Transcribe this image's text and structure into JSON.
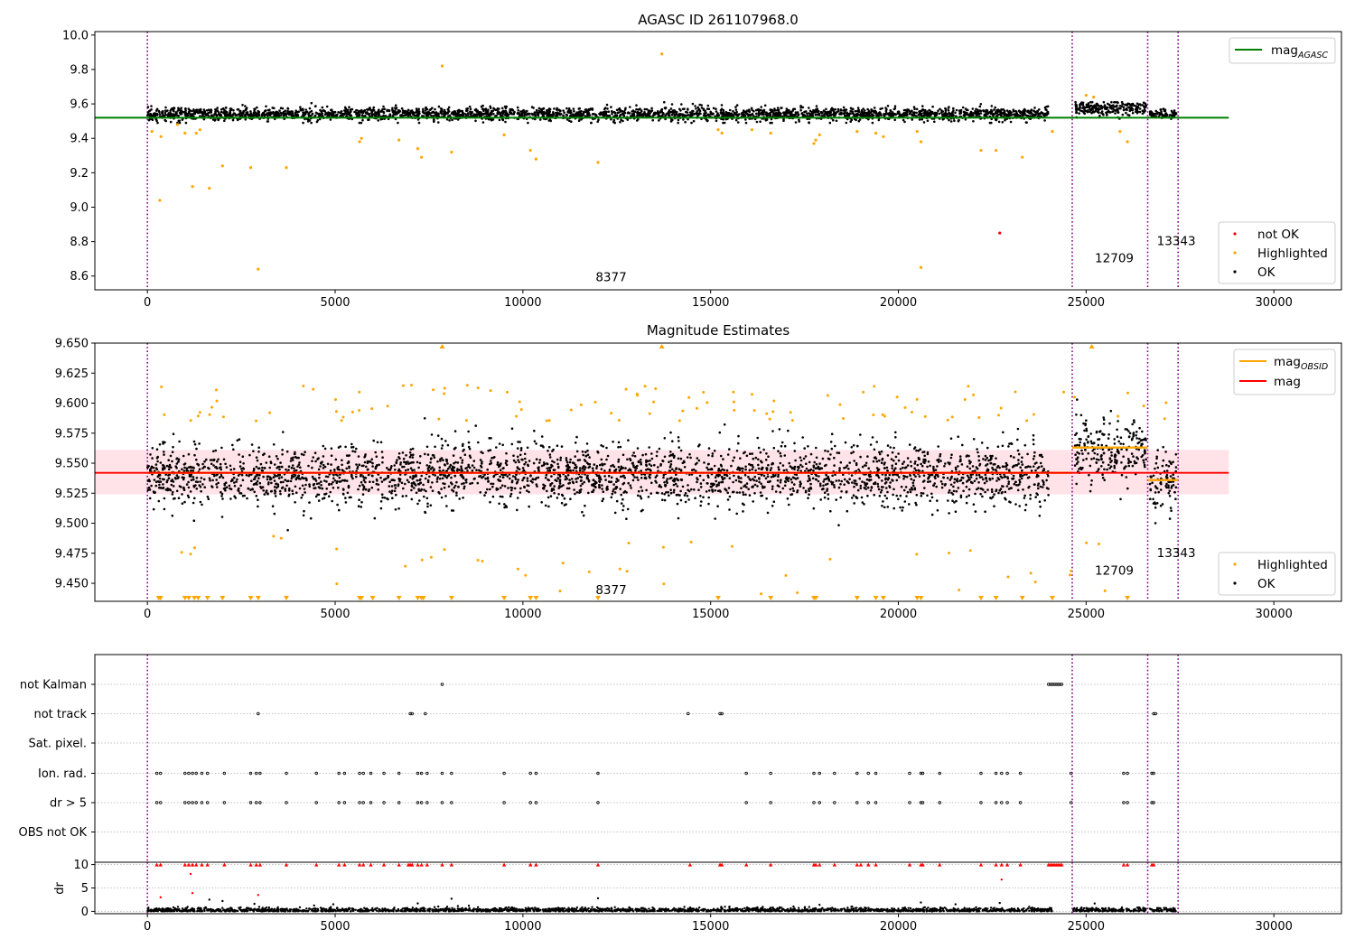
{
  "colors": {
    "ok": "#000000",
    "highlighted": "#ffa500",
    "not_ok": "#ff0000",
    "mag_agasc": "#008000",
    "mag_obsid": "#ffa500",
    "mag": "#ff0000",
    "obs_boundary": "#800080",
    "band": "#ffc0cb",
    "grid": "#b0b0b0"
  },
  "chart_data": [
    {
      "type": "scatter",
      "title": "AGASC ID 261107968.0",
      "xlim": [
        -1400,
        31800
      ],
      "ylim": [
        8.52,
        10.02
      ],
      "x_ticks": [
        "0",
        "5000",
        "10000",
        "15000",
        "20000",
        "25000",
        "30000"
      ],
      "y_ticks": [
        "8.6",
        "8.8",
        "9.0",
        "9.2",
        "9.4",
        "9.6",
        "9.8",
        "10.0"
      ],
      "lines": [
        {
          "name_main": "mag",
          "name_sub": "AGASC",
          "y": 9.52,
          "x_range": [
            -1400,
            28800
          ]
        }
      ],
      "legend_lines_position": "upper right",
      "legend_points": [
        "not OK",
        "Highlighted",
        "OK"
      ],
      "legend_points_position": "lower right",
      "obs_boundaries": [
        0,
        24630,
        26640,
        27450
      ],
      "obs_labels": [
        {
          "text": "8377",
          "x": 12350,
          "y": 8.57
        },
        {
          "text": "12709",
          "x": 25750,
          "y": 8.68
        },
        {
          "text": "13343",
          "x": 27400,
          "y": 8.78
        }
      ],
      "segments": [
        {
          "x0": 0,
          "x1": 24000,
          "center": 9.54,
          "spread": 0.018
        },
        {
          "x0": 24700,
          "x1": 26600,
          "center": 9.575,
          "spread": 0.02
        },
        {
          "x0": 26700,
          "x1": 27400,
          "center": 9.54,
          "spread": 0.012
        }
      ],
      "outliers_highlighted": [
        [
          120,
          9.44
        ],
        [
          330,
          9.04
        ],
        [
          360,
          9.41
        ],
        [
          800,
          9.48
        ],
        [
          1000,
          9.43
        ],
        [
          1200,
          9.12
        ],
        [
          1300,
          9.43
        ],
        [
          1400,
          9.45
        ],
        [
          1650,
          9.11
        ],
        [
          2000,
          9.24
        ],
        [
          2750,
          9.23
        ],
        [
          2950,
          8.64
        ],
        [
          3700,
          9.23
        ],
        [
          5650,
          9.38
        ],
        [
          5700,
          9.4
        ],
        [
          6700,
          9.39
        ],
        [
          7200,
          9.34
        ],
        [
          7300,
          9.29
        ],
        [
          7850,
          9.82
        ],
        [
          8100,
          9.32
        ],
        [
          9500,
          9.42
        ],
        [
          10200,
          9.33
        ],
        [
          10350,
          9.28
        ],
        [
          12000,
          9.26
        ],
        [
          13700,
          9.89
        ],
        [
          15200,
          9.45
        ],
        [
          15300,
          9.43
        ],
        [
          16100,
          9.45
        ],
        [
          16600,
          9.43
        ],
        [
          17750,
          9.37
        ],
        [
          17800,
          9.39
        ],
        [
          17900,
          9.42
        ],
        [
          18900,
          9.44
        ],
        [
          19400,
          9.43
        ],
        [
          19600,
          9.41
        ],
        [
          20500,
          9.44
        ],
        [
          20600,
          9.38
        ],
        [
          20600,
          8.65
        ],
        [
          22200,
          9.33
        ],
        [
          22600,
          9.33
        ],
        [
          23300,
          9.29
        ],
        [
          24100,
          9.44
        ],
        [
          25000,
          9.65
        ],
        [
          25200,
          9.64
        ],
        [
          25900,
          9.44
        ],
        [
          26100,
          9.38
        ]
      ],
      "outliers_not_ok": [
        [
          22700,
          8.85
        ]
      ]
    },
    {
      "type": "scatter",
      "title": "Magnitude Estimates",
      "xlim": [
        -1400,
        31800
      ],
      "ylim": [
        9.435,
        9.65
      ],
      "x_ticks": [
        "0",
        "5000",
        "10000",
        "15000",
        "20000",
        "25000",
        "30000"
      ],
      "y_ticks": [
        "9.450",
        "9.475",
        "9.500",
        "9.525",
        "9.550",
        "9.575",
        "9.600",
        "9.625",
        "9.650"
      ],
      "lines": [
        {
          "name_main": "mag",
          "name_sub": "OBSID",
          "segments": [
            [
              0,
              24630,
              9.542
            ],
            [
              24630,
              26640,
              9.563
            ],
            [
              26640,
              27450,
              9.536
            ]
          ]
        },
        {
          "name_main": "mag",
          "name_sub": "",
          "y": 9.542,
          "x_range": [
            -1400,
            28800
          ]
        }
      ],
      "band": {
        "y0": 9.524,
        "y1": 9.561,
        "x_range": [
          -1400,
          28800
        ]
      },
      "legend_lines_position": "upper right",
      "legend_points": [
        "Highlighted",
        "OK"
      ],
      "legend_points_position": "lower right",
      "obs_boundaries": [
        0,
        24630,
        26640,
        27450
      ],
      "obs_labels": [
        {
          "text": "8377",
          "x": 12350,
          "y": 9.441
        },
        {
          "text": "12709",
          "x": 25750,
          "y": 9.457
        },
        {
          "text": "13343",
          "x": 27400,
          "y": 9.472
        }
      ],
      "segments": [
        {
          "x0": 0,
          "x1": 24000,
          "center": 9.54,
          "spread": 0.012
        },
        {
          "x0": 24700,
          "x1": 26600,
          "center": 9.56,
          "spread": 0.012
        },
        {
          "x0": 26700,
          "x1": 27400,
          "center": 9.535,
          "spread": 0.01
        }
      ],
      "clipped_low_x": [
        300,
        350,
        1000,
        1100,
        1250,
        1350,
        1600,
        2000,
        2750,
        2950,
        3700,
        5650,
        5700,
        6000,
        6700,
        7200,
        7300,
        7350,
        8100,
        9500,
        10200,
        10350,
        12000,
        15200,
        16600,
        17750,
        17800,
        18900,
        19400,
        19600,
        20500,
        20600,
        22200,
        22600,
        23300,
        24100,
        26100
      ],
      "clipped_high_x": [
        7850,
        13700,
        25150
      ]
    },
    {
      "type": "scatter",
      "title": "",
      "xlim": [
        -1400,
        31800
      ],
      "x_ticks": [
        "0",
        "5000",
        "10000",
        "15000",
        "20000",
        "25000",
        "30000"
      ],
      "flag_rows": [
        "not Kalman",
        "not track",
        "Sat. pixel.",
        "Ion. rad.",
        "dr > 5",
        "OBS not OK"
      ],
      "flags": {
        "not Kalman": [
          7850,
          24000,
          24050,
          24100,
          24150,
          24200,
          24250,
          24300,
          24350
        ],
        "not track": [
          2950,
          7000,
          7050,
          7400,
          14400,
          15250,
          15300,
          26800,
          26850
        ],
        "Sat. pixel.": [],
        "Ion. rad.": [
          250,
          350,
          1000,
          1100,
          1200,
          1300,
          1450,
          1600,
          2050,
          2750,
          2900,
          3000,
          3700,
          4500,
          5100,
          5250,
          5650,
          5750,
          5950,
          6300,
          6700,
          7200,
          7300,
          7450,
          7850,
          8100,
          9500,
          10200,
          10350,
          12000,
          15950,
          16600,
          17750,
          17900,
          18300,
          18900,
          19200,
          19400,
          20300,
          20600,
          20650,
          21100,
          22200,
          22600,
          22750,
          22900,
          23250,
          24600,
          26000,
          26100,
          26750,
          26800
        ],
        "dr > 5": [
          250,
          350,
          1000,
          1100,
          1200,
          1300,
          1450,
          1600,
          2050,
          2750,
          2900,
          3000,
          3700,
          4500,
          5100,
          5250,
          5650,
          5750,
          5950,
          6300,
          6700,
          7200,
          7300,
          7450,
          7850,
          8100,
          9500,
          10200,
          10350,
          12000,
          15950,
          16600,
          17750,
          17900,
          18300,
          18900,
          19200,
          19400,
          20300,
          20600,
          20650,
          21100,
          22200,
          22600,
          22750,
          22900,
          23250,
          24600,
          26000,
          26100,
          26750,
          26800
        ],
        "OBS not OK": []
      },
      "dr_ylim": [
        -0.5,
        10.5
      ],
      "dr_ylabel": "dr",
      "dr_y_ticks": [
        "0",
        "5",
        "10"
      ],
      "dr_high": [
        250,
        350,
        1000,
        1100,
        1200,
        1300,
        1450,
        1600,
        2050,
        2750,
        2900,
        3000,
        3700,
        4500,
        5100,
        5250,
        5650,
        5750,
        5950,
        6300,
        6700,
        6950,
        7000,
        7050,
        7200,
        7300,
        7450,
        7850,
        8100,
        9500,
        10200,
        10350,
        12000,
        14450,
        15250,
        15300,
        15950,
        16600,
        17750,
        17800,
        17900,
        18300,
        18900,
        19000,
        19200,
        19400,
        20300,
        20600,
        20650,
        21100,
        22200,
        22600,
        22750,
        22900,
        23250,
        24000,
        24050,
        24100,
        24150,
        24200,
        24250,
        24300,
        24350,
        26000,
        26100,
        26750,
        26800
      ],
      "dr_mid_red": [
        [
          350,
          3.0
        ],
        [
          1150,
          8.0
        ],
        [
          1200,
          3.9
        ],
        [
          2950,
          3.5
        ],
        [
          22750,
          6.8
        ]
      ],
      "dr_mid_black": [
        [
          1650,
          2.5
        ],
        [
          2000,
          2.2
        ],
        [
          2850,
          1.6
        ],
        [
          4950,
          1.5
        ],
        [
          7200,
          1.7
        ],
        [
          8100,
          2.7
        ],
        [
          12000,
          2.8
        ],
        [
          17900,
          1.4
        ],
        [
          20600,
          1.9
        ],
        [
          22700,
          1.8
        ]
      ]
    }
  ]
}
